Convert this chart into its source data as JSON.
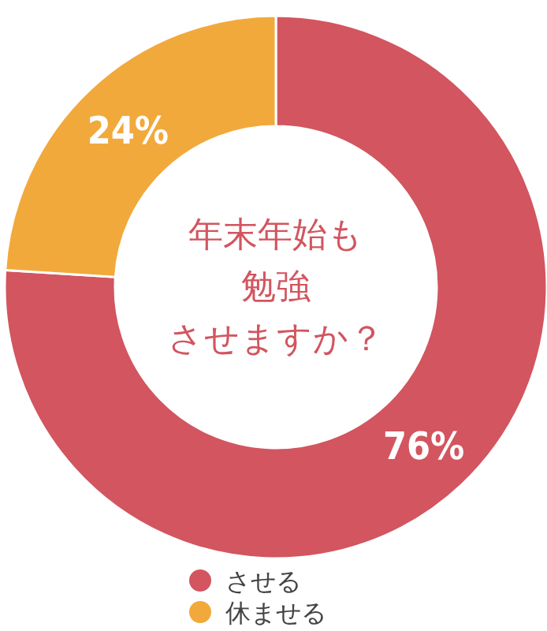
{
  "chart_data": {
    "type": "donut",
    "title": "年末年始も勉強させますか？",
    "categories": [
      "させる",
      "休ませる"
    ],
    "values": [
      76,
      24
    ],
    "value_labels": [
      "76%",
      "24%"
    ],
    "colors": [
      "#d2555f",
      "#f2a93b"
    ],
    "legend": "bottom"
  }
}
